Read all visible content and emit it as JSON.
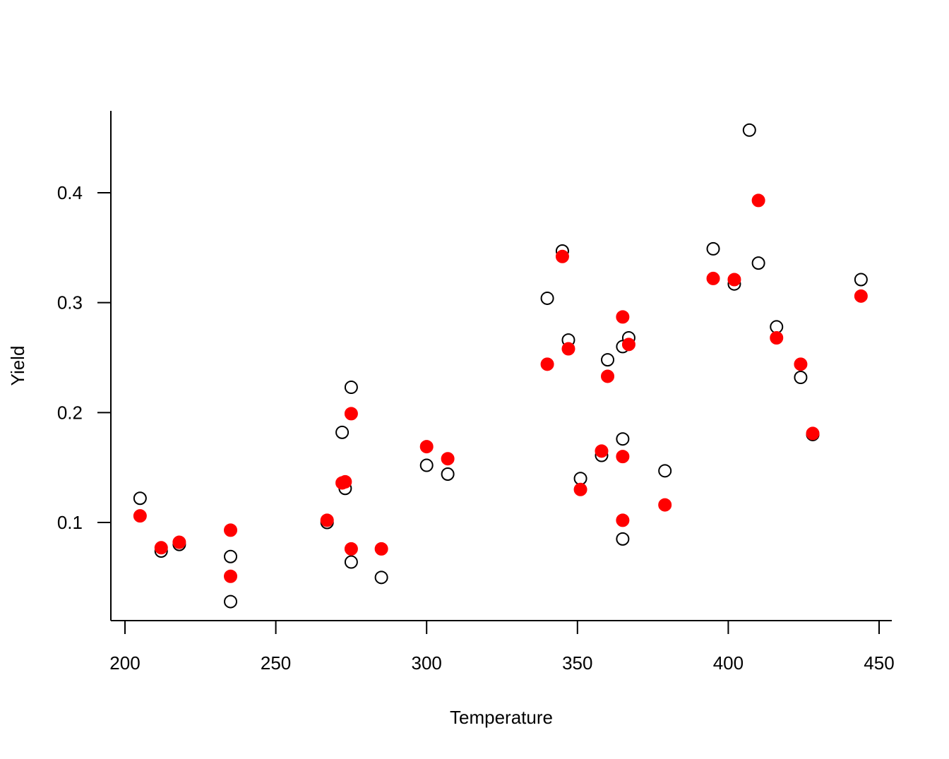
{
  "chart_data": {
    "type": "scatter",
    "title": "",
    "xlabel": "Temperature",
    "ylabel": "Yield",
    "xlim": [
      200,
      450
    ],
    "ylim": [
      0.01,
      0.47
    ],
    "x_ticks": [
      200,
      250,
      300,
      350,
      400,
      450
    ],
    "y_ticks": [
      0.1,
      0.2,
      0.3,
      0.4
    ],
    "x_tick_labels": [
      "200",
      "250",
      "300",
      "350",
      "400",
      "450"
    ],
    "y_tick_labels": [
      "0.1",
      "0.2",
      "0.3",
      "0.4"
    ],
    "grid": false,
    "legend": "none",
    "series": [
      {
        "marker": "open-circle",
        "color": "#000000",
        "points": [
          [
            205,
            0.122
          ],
          [
            212,
            0.074
          ],
          [
            218,
            0.08
          ],
          [
            235,
            0.069
          ],
          [
            235,
            0.028
          ],
          [
            267,
            0.1
          ],
          [
            272,
            0.182
          ],
          [
            273,
            0.131
          ],
          [
            275,
            0.223
          ],
          [
            275,
            0.064
          ],
          [
            285,
            0.05
          ],
          [
            300,
            0.152
          ],
          [
            307,
            0.144
          ],
          [
            340,
            0.304
          ],
          [
            345,
            0.347
          ],
          [
            347,
            0.266
          ],
          [
            351,
            0.14
          ],
          [
            358,
            0.161
          ],
          [
            360,
            0.248
          ],
          [
            365,
            0.26
          ],
          [
            365,
            0.176
          ],
          [
            365,
            0.085
          ],
          [
            367,
            0.268
          ],
          [
            379,
            0.147
          ],
          [
            395,
            0.349
          ],
          [
            402,
            0.317
          ],
          [
            407,
            0.457
          ],
          [
            410,
            0.336
          ],
          [
            416,
            0.278
          ],
          [
            424,
            0.232
          ],
          [
            428,
            0.18
          ],
          [
            444,
            0.321
          ]
        ]
      },
      {
        "marker": "filled-circle",
        "color": "#ff0000",
        "points": [
          [
            205,
            0.106
          ],
          [
            212,
            0.077
          ],
          [
            218,
            0.082
          ],
          [
            235,
            0.093
          ],
          [
            235,
            0.051
          ],
          [
            267,
            0.102
          ],
          [
            272,
            0.136
          ],
          [
            273,
            0.137
          ],
          [
            275,
            0.199
          ],
          [
            275,
            0.076
          ],
          [
            285,
            0.076
          ],
          [
            300,
            0.169
          ],
          [
            307,
            0.158
          ],
          [
            340,
            0.244
          ],
          [
            345,
            0.342
          ],
          [
            347,
            0.258
          ],
          [
            351,
            0.13
          ],
          [
            358,
            0.165
          ],
          [
            360,
            0.233
          ],
          [
            365,
            0.287
          ],
          [
            365,
            0.16
          ],
          [
            365,
            0.102
          ],
          [
            367,
            0.262
          ],
          [
            379,
            0.116
          ],
          [
            395,
            0.322
          ],
          [
            402,
            0.321
          ],
          [
            410,
            0.393
          ],
          [
            416,
            0.268
          ],
          [
            424,
            0.244
          ],
          [
            428,
            0.181
          ],
          [
            444,
            0.306
          ]
        ]
      }
    ]
  }
}
